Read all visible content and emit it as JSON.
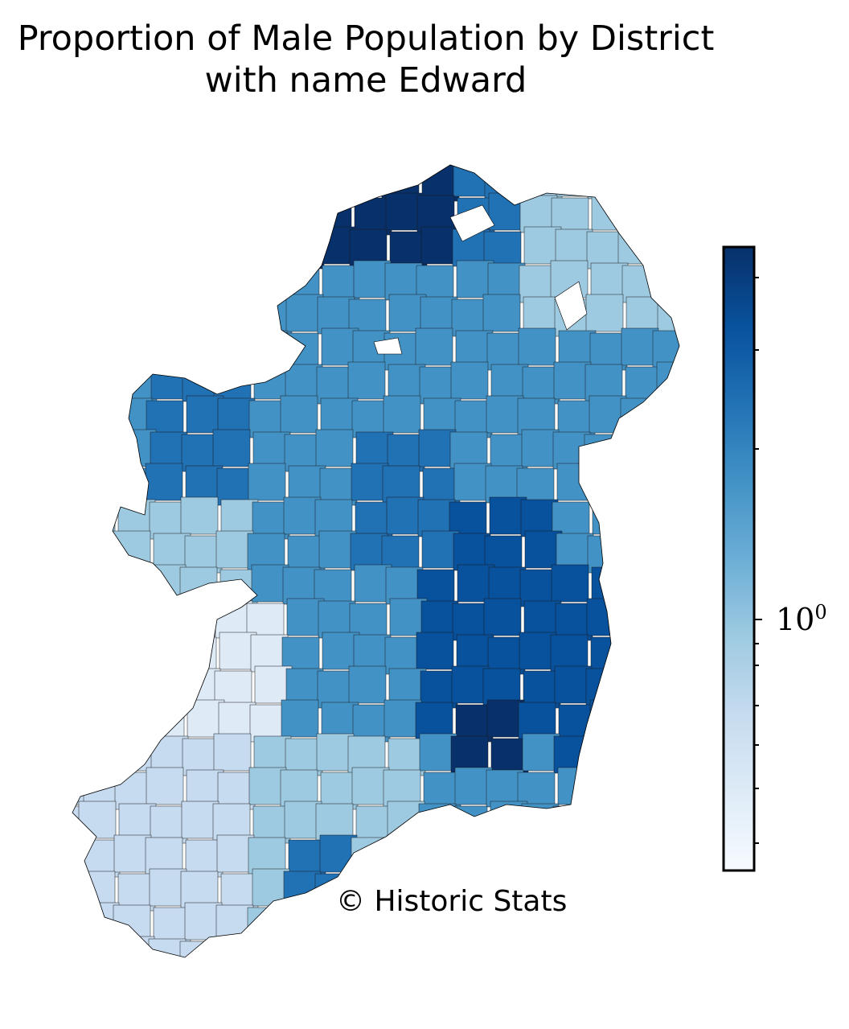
{
  "title_line1": "Proportion of Male Population by District",
  "title_line2": "with name Edward",
  "credit": "© Historic Stats",
  "colormap": {
    "name": "Blues",
    "stops": [
      "#f7fbff",
      "#deebf7",
      "#c6dbef",
      "#9ecae1",
      "#6baed6",
      "#4292c6",
      "#2171b5",
      "#08519c",
      "#08306b"
    ]
  },
  "colorbar": {
    "scale": "log",
    "major_tick_label": "10",
    "major_tick_exponent": "0"
  }
}
